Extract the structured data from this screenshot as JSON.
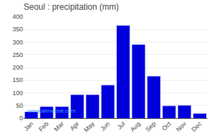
{
  "chart_data": {
    "type": "bar",
    "title": "Seoul : precipitation (mm)",
    "categories": [
      "Jan",
      "Feb",
      "Mar",
      "Apr",
      "May",
      "Jun",
      "Jul",
      "Aug",
      "Sep",
      "Oct",
      "Nov",
      "Dec"
    ],
    "values": [
      25,
      45,
      45,
      92,
      92,
      130,
      365,
      290,
      165,
      48,
      50,
      18
    ],
    "color": "#0000dd",
    "ylim": [
      0,
      400
    ],
    "yticks": [
      0,
      50,
      100,
      150,
      200,
      250,
      300,
      350,
      400
    ],
    "grid": true,
    "annotations": [
      {
        "text": "www.allmetsat.com",
        "color": "#4499ff"
      }
    ]
  }
}
